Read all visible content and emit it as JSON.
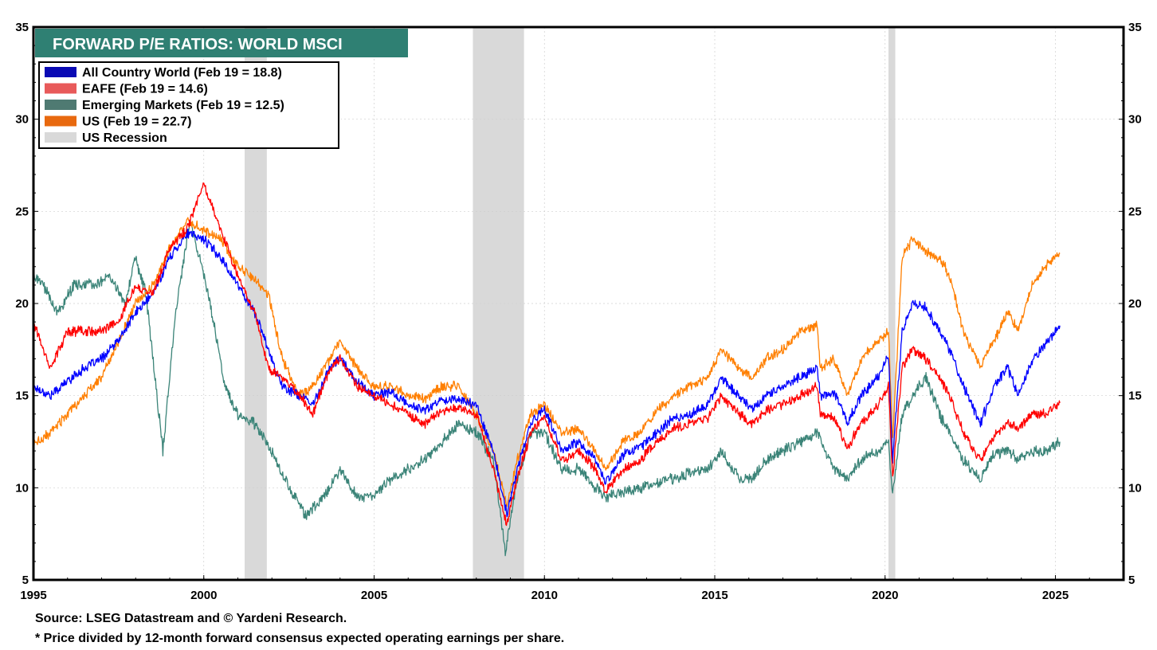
{
  "chart_data": {
    "type": "line",
    "title": "FORWARD P/E RATIOS: WORLD MSCI",
    "xlim": [
      1995,
      2027.0
    ],
    "ylim": [
      5,
      35
    ],
    "x_ticks": [
      1995,
      2000,
      2005,
      2010,
      2015,
      2020,
      2025
    ],
    "y_ticks": [
      5,
      10,
      15,
      20,
      25,
      30,
      35
    ],
    "grid": true,
    "legend_position": "top-left",
    "recessions": [
      {
        "start": 2001.2,
        "end": 2001.85
      },
      {
        "start": 2007.9,
        "end": 2009.4
      },
      {
        "start": 2020.1,
        "end": 2020.3
      }
    ],
    "legend": [
      {
        "label": "All Country World (Feb 19 = 18.8)",
        "color": "#0a0ab4"
      },
      {
        "label": "EAFE (Feb 19 = 14.6)",
        "color": "#e85a5a"
      },
      {
        "label": "Emerging Markets (Feb 19 = 12.5)",
        "color": "#4f7a72"
      },
      {
        "label": "US (Feb 19 = 22.7)",
        "color": "#e8690f"
      },
      {
        "label": "US Recession",
        "color": "#d9d9d9"
      }
    ],
    "series": [
      {
        "name": "All Country World",
        "color": "#0000ff",
        "x": [
          1995.0,
          1995.5,
          1996.0,
          1996.5,
          1997.0,
          1997.5,
          1998.0,
          1998.5,
          1999.0,
          1999.5,
          2000.0,
          2000.5,
          2001.0,
          2001.5,
          2001.9,
          2002.3,
          2002.8,
          2003.2,
          2003.7,
          2004.0,
          2004.5,
          2005.0,
          2005.5,
          2006.0,
          2006.5,
          2007.0,
          2007.5,
          2008.0,
          2008.5,
          2008.9,
          2009.2,
          2009.6,
          2010.0,
          2010.5,
          2011.0,
          2011.5,
          2011.8,
          2012.3,
          2012.8,
          2013.3,
          2013.8,
          2014.3,
          2014.8,
          2015.2,
          2015.7,
          2016.1,
          2016.5,
          2017.0,
          2017.5,
          2018.0,
          2018.1,
          2018.5,
          2018.9,
          2019.3,
          2019.8,
          2020.1,
          2020.22,
          2020.5,
          2020.8,
          2021.2,
          2021.6,
          2021.9,
          2022.3,
          2022.8,
          2023.2,
          2023.6,
          2023.9,
          2024.3,
          2024.7,
          2025.13
        ],
        "y": [
          15.5,
          15.0,
          15.8,
          16.5,
          17.0,
          18.0,
          19.5,
          20.5,
          22.5,
          23.8,
          23.5,
          22.5,
          21.0,
          19.5,
          17.5,
          15.5,
          15.0,
          14.5,
          16.5,
          17.0,
          15.8,
          15.0,
          15.2,
          14.5,
          14.2,
          14.8,
          14.8,
          14.5,
          12.0,
          8.5,
          11.0,
          13.5,
          14.3,
          12.0,
          12.5,
          11.5,
          10.3,
          11.8,
          12.2,
          13.0,
          13.8,
          14.0,
          14.5,
          16.0,
          15.0,
          14.3,
          15.0,
          15.5,
          16.0,
          16.5,
          15.0,
          15.2,
          13.5,
          15.0,
          16.0,
          17.2,
          11.5,
          18.5,
          20.0,
          19.8,
          18.5,
          17.5,
          15.5,
          13.5,
          15.5,
          16.5,
          15.0,
          16.8,
          17.8,
          18.8
        ]
      },
      {
        "name": "EAFE",
        "color": "#ff0000",
        "x": [
          1995.0,
          1995.5,
          1996.0,
          1996.5,
          1997.0,
          1997.5,
          1998.0,
          1998.5,
          1999.0,
          1999.5,
          2000.0,
          2000.5,
          2001.0,
          2001.5,
          2001.9,
          2002.3,
          2002.8,
          2003.2,
          2003.7,
          2004.0,
          2004.5,
          2005.0,
          2005.5,
          2006.0,
          2006.5,
          2007.0,
          2007.5,
          2008.0,
          2008.5,
          2008.9,
          2009.2,
          2009.6,
          2010.0,
          2010.5,
          2011.0,
          2011.5,
          2011.8,
          2012.3,
          2012.8,
          2013.3,
          2013.8,
          2014.3,
          2014.8,
          2015.2,
          2015.7,
          2016.1,
          2016.5,
          2017.0,
          2017.5,
          2018.0,
          2018.1,
          2018.5,
          2018.9,
          2019.3,
          2019.8,
          2020.1,
          2020.22,
          2020.5,
          2020.8,
          2021.2,
          2021.6,
          2021.9,
          2022.3,
          2022.8,
          2023.2,
          2023.6,
          2023.9,
          2024.3,
          2024.7,
          2025.13
        ],
        "y": [
          19.0,
          16.5,
          18.5,
          18.5,
          18.5,
          19.0,
          21.0,
          20.5,
          23.0,
          24.0,
          26.5,
          24.0,
          21.5,
          19.5,
          16.5,
          16.0,
          15.0,
          14.0,
          16.5,
          17.0,
          15.5,
          15.0,
          14.5,
          14.0,
          13.5,
          14.2,
          14.3,
          14.0,
          11.0,
          8.0,
          10.5,
          13.0,
          13.8,
          11.5,
          12.0,
          11.0,
          9.8,
          11.0,
          11.5,
          12.5,
          13.2,
          13.5,
          13.8,
          15.0,
          14.0,
          13.5,
          14.2,
          14.5,
          15.0,
          15.5,
          14.0,
          13.8,
          12.2,
          13.5,
          14.5,
          15.5,
          10.5,
          16.5,
          17.5,
          17.0,
          16.0,
          15.0,
          13.0,
          11.5,
          12.8,
          13.5,
          13.2,
          14.0,
          14.0,
          14.6
        ]
      },
      {
        "name": "Emerging Markets",
        "color": "#3b8478",
        "x": [
          1995.0,
          1995.3,
          1995.7,
          1996.2,
          1996.7,
          1997.2,
          1997.7,
          1998.0,
          1998.3,
          1998.8,
          1999.2,
          1999.6,
          2000.0,
          2000.3,
          2000.6,
          2001.0,
          2001.5,
          2002.0,
          2002.5,
          2003.0,
          2003.5,
          2004.0,
          2004.5,
          2005.0,
          2005.5,
          2006.0,
          2006.5,
          2007.0,
          2007.5,
          2008.0,
          2008.5,
          2008.85,
          2009.2,
          2009.6,
          2010.0,
          2010.5,
          2011.0,
          2011.5,
          2011.8,
          2012.3,
          2012.8,
          2013.3,
          2013.8,
          2014.3,
          2014.8,
          2015.2,
          2015.7,
          2016.1,
          2016.5,
          2017.0,
          2017.5,
          2018.0,
          2018.5,
          2018.9,
          2019.3,
          2019.8,
          2020.1,
          2020.22,
          2020.5,
          2020.8,
          2021.2,
          2021.6,
          2021.9,
          2022.3,
          2022.8,
          2023.2,
          2023.6,
          2023.9,
          2024.3,
          2024.7,
          2025.13
        ],
        "y": [
          21.5,
          21.0,
          19.5,
          21.0,
          21.0,
          21.5,
          20.0,
          22.5,
          20.5,
          12.0,
          20.0,
          24.5,
          21.5,
          19.0,
          15.5,
          14.0,
          13.5,
          12.0,
          10.0,
          8.5,
          9.5,
          11.0,
          9.5,
          9.5,
          10.5,
          11.0,
          11.5,
          12.5,
          13.5,
          13.0,
          11.5,
          6.5,
          10.5,
          13.0,
          13.0,
          11.0,
          11.0,
          10.0,
          9.5,
          9.8,
          10.0,
          10.3,
          10.5,
          10.8,
          11.0,
          12.0,
          10.5,
          10.5,
          11.5,
          12.0,
          12.5,
          13.0,
          11.0,
          10.5,
          11.5,
          12.0,
          12.5,
          9.5,
          14.0,
          15.0,
          16.0,
          14.0,
          13.0,
          11.5,
          10.5,
          11.8,
          12.0,
          11.5,
          12.0,
          12.0,
          12.5
        ]
      },
      {
        "name": "US",
        "color": "#ff7f00",
        "x": [
          1995.0,
          1995.5,
          1996.0,
          1996.5,
          1997.0,
          1997.5,
          1998.0,
          1998.5,
          1999.0,
          1999.5,
          2000.0,
          2000.5,
          2001.0,
          2001.4,
          2001.9,
          2002.3,
          2002.8,
          2003.2,
          2003.7,
          2004.0,
          2004.5,
          2005.0,
          2005.5,
          2006.0,
          2006.5,
          2007.0,
          2007.5,
          2008.0,
          2008.5,
          2008.9,
          2009.2,
          2009.6,
          2010.0,
          2010.5,
          2011.0,
          2011.5,
          2011.8,
          2012.3,
          2012.8,
          2013.3,
          2013.8,
          2014.3,
          2014.8,
          2015.2,
          2015.7,
          2016.1,
          2016.5,
          2017.0,
          2017.5,
          2018.0,
          2018.1,
          2018.5,
          2018.9,
          2019.3,
          2019.8,
          2020.1,
          2020.22,
          2020.5,
          2020.8,
          2021.2,
          2021.6,
          2021.9,
          2022.3,
          2022.8,
          2023.2,
          2023.6,
          2023.9,
          2024.3,
          2024.7,
          2025.13
        ],
        "y": [
          12.3,
          13.0,
          14.0,
          15.0,
          16.0,
          18.0,
          20.0,
          21.0,
          23.0,
          24.5,
          24.0,
          23.5,
          22.0,
          21.5,
          20.5,
          17.0,
          15.0,
          15.5,
          17.0,
          18.0,
          16.5,
          15.5,
          15.5,
          15.0,
          14.8,
          15.5,
          15.5,
          14.0,
          12.0,
          9.0,
          11.5,
          14.0,
          14.5,
          13.0,
          13.2,
          12.0,
          11.0,
          12.5,
          13.0,
          14.2,
          15.0,
          15.5,
          16.0,
          17.5,
          16.5,
          16.0,
          17.0,
          17.5,
          18.5,
          18.8,
          16.5,
          17.0,
          15.0,
          17.0,
          18.0,
          18.5,
          12.5,
          22.5,
          23.5,
          22.8,
          22.5,
          21.5,
          18.5,
          16.5,
          18.0,
          19.5,
          18.5,
          21.0,
          22.0,
          22.7
        ]
      }
    ]
  },
  "footer": {
    "source": "Source: LSEG Datastream and © Yardeni Research.",
    "note": "* Price divided by 12-month forward consensus expected operating earnings per share."
  }
}
